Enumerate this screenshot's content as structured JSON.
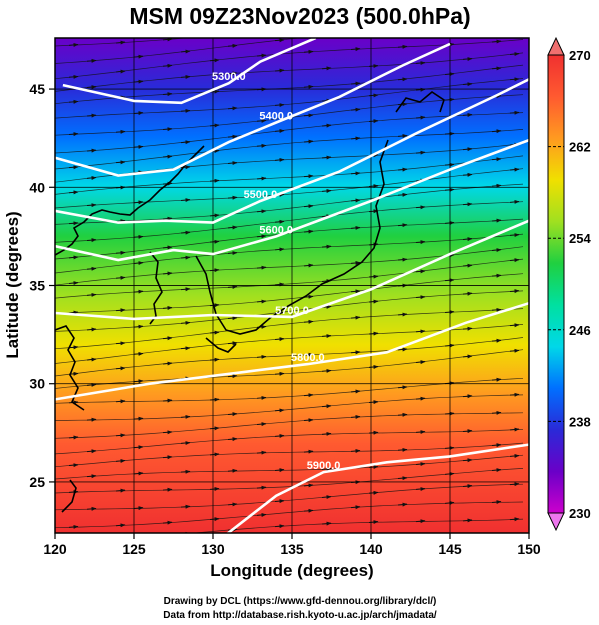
{
  "chart_data": {
    "type": "heatmap",
    "title": "MSM 09Z23Nov2023 (500.0hPa)",
    "xlabel": "Longitude (degrees)",
    "ylabel": "Latitude  (degrees)",
    "xlim": [
      120,
      150
    ],
    "ylim": [
      22.4,
      47.6
    ],
    "xticks": [
      120,
      125,
      130,
      135,
      140,
      145,
      150
    ],
    "yticks": [
      25,
      30,
      35,
      40,
      45
    ],
    "grid": true,
    "colorbar": {
      "min": 230,
      "max": 270,
      "ticks": [
        230,
        238,
        246,
        254,
        262,
        270
      ],
      "extend": "both",
      "colors": [
        "#cc00cc",
        "#6a00c8",
        "#2a2ad8",
        "#0070ff",
        "#00d8e8",
        "#00e0a0",
        "#20d040",
        "#a0e020",
        "#f0e000",
        "#ff9a20",
        "#ff5a30",
        "#f03030"
      ]
    },
    "contours": [
      {
        "label": "5300.0",
        "value": 5300,
        "points": [
          [
            120.5,
            45.2
          ],
          [
            125,
            44.4
          ],
          [
            128,
            44.3
          ],
          [
            131,
            45.3
          ],
          [
            133,
            46.4
          ],
          [
            136.5,
            47.6
          ]
        ]
      },
      {
        "label": "5400.0",
        "value": 5400,
        "points": [
          [
            120,
            41.5
          ],
          [
            124,
            40.6
          ],
          [
            127.5,
            40.9
          ],
          [
            131,
            42.3
          ],
          [
            134,
            43.3
          ],
          [
            138,
            44.6
          ],
          [
            142,
            46.2
          ],
          [
            145,
            47.3
          ]
        ]
      },
      {
        "label": "5500.0",
        "value": 5500,
        "points": [
          [
            120,
            38.8
          ],
          [
            124,
            38.2
          ],
          [
            127,
            38.3
          ],
          [
            130,
            38.2
          ],
          [
            133,
            39.3
          ],
          [
            138,
            40.8
          ],
          [
            143,
            42.8
          ],
          [
            148,
            44.7
          ],
          [
            150,
            45.5
          ]
        ]
      },
      {
        "label": "5600.0",
        "value": 5600,
        "points": [
          [
            120,
            37.0
          ],
          [
            124,
            36.3
          ],
          [
            127.5,
            36.8
          ],
          [
            130,
            36.6
          ],
          [
            134,
            37.5
          ],
          [
            140,
            39.3
          ],
          [
            145,
            40.9
          ],
          [
            150,
            42.4
          ]
        ]
      },
      {
        "label": "5700.0",
        "value": 5700,
        "points": [
          [
            120,
            33.6
          ],
          [
            125,
            33.3
          ],
          [
            130,
            33.5
          ],
          [
            135,
            33.4
          ],
          [
            140,
            34.8
          ],
          [
            145,
            36.6
          ],
          [
            150,
            38.3
          ]
        ]
      },
      {
        "label": "5800.0",
        "value": 5800,
        "points": [
          [
            120,
            29.2
          ],
          [
            126,
            30.0
          ],
          [
            132,
            30.6
          ],
          [
            136,
            31.0
          ],
          [
            141,
            31.6
          ],
          [
            146,
            33.1
          ],
          [
            150,
            34.1
          ]
        ]
      },
      {
        "label": "5900.0",
        "value": 5900,
        "points": [
          [
            120,
            20.2
          ],
          [
            130,
            21.8
          ],
          [
            134,
            24.3
          ],
          [
            137,
            25.5
          ],
          [
            141,
            26.0
          ],
          [
            145,
            26.3
          ],
          [
            150,
            26.9
          ]
        ]
      }
    ]
  },
  "credits": {
    "line1": "Drawing by DCL (https://www.gfd-dennou.org/library/dcl/)",
    "line2": "Data from http://database.rish.kyoto-u.ac.jp/arch/jmadata/"
  }
}
